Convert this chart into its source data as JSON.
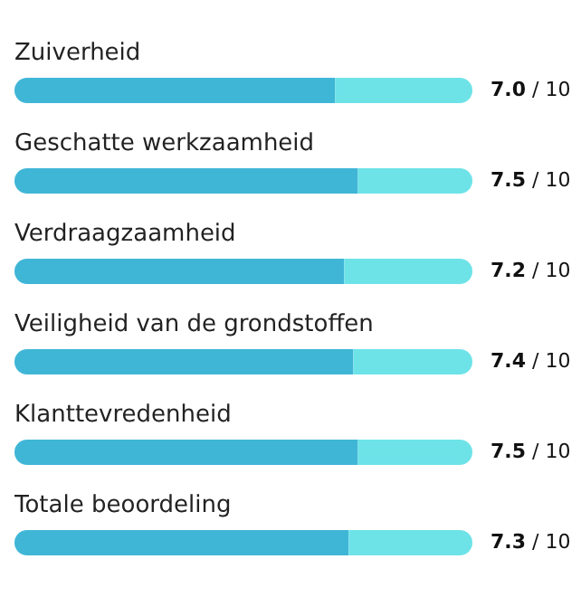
{
  "chart_data": {
    "type": "bar",
    "orientation": "horizontal",
    "stacked": true,
    "categories": [
      "Zuiverheid",
      "Geschatte werkzaamheid",
      "Verdraagzaamheid",
      "Veiligheid van de grondstoffen",
      "Klanttevredenheid",
      "Totale beoordeling"
    ],
    "series": [
      {
        "color": "#40b6d6",
        "values": [
          7.0,
          7.5,
          7.2,
          7.4,
          7.5,
          7.3
        ],
        "value_labels": [
          "7.0",
          "7.5",
          "7.2",
          "7.4",
          "7.5",
          "7.3"
        ]
      },
      {
        "color": "#6de3e8",
        "values": [
          3.0,
          2.5,
          2.8,
          2.6,
          2.5,
          2.7
        ]
      }
    ],
    "annotations": [
      "/ 10",
      "/ 10",
      "/ 10",
      "/ 10",
      "/ 10",
      "/ 10"
    ],
    "xlim": [
      0,
      10
    ],
    "tick_labels": false
  }
}
